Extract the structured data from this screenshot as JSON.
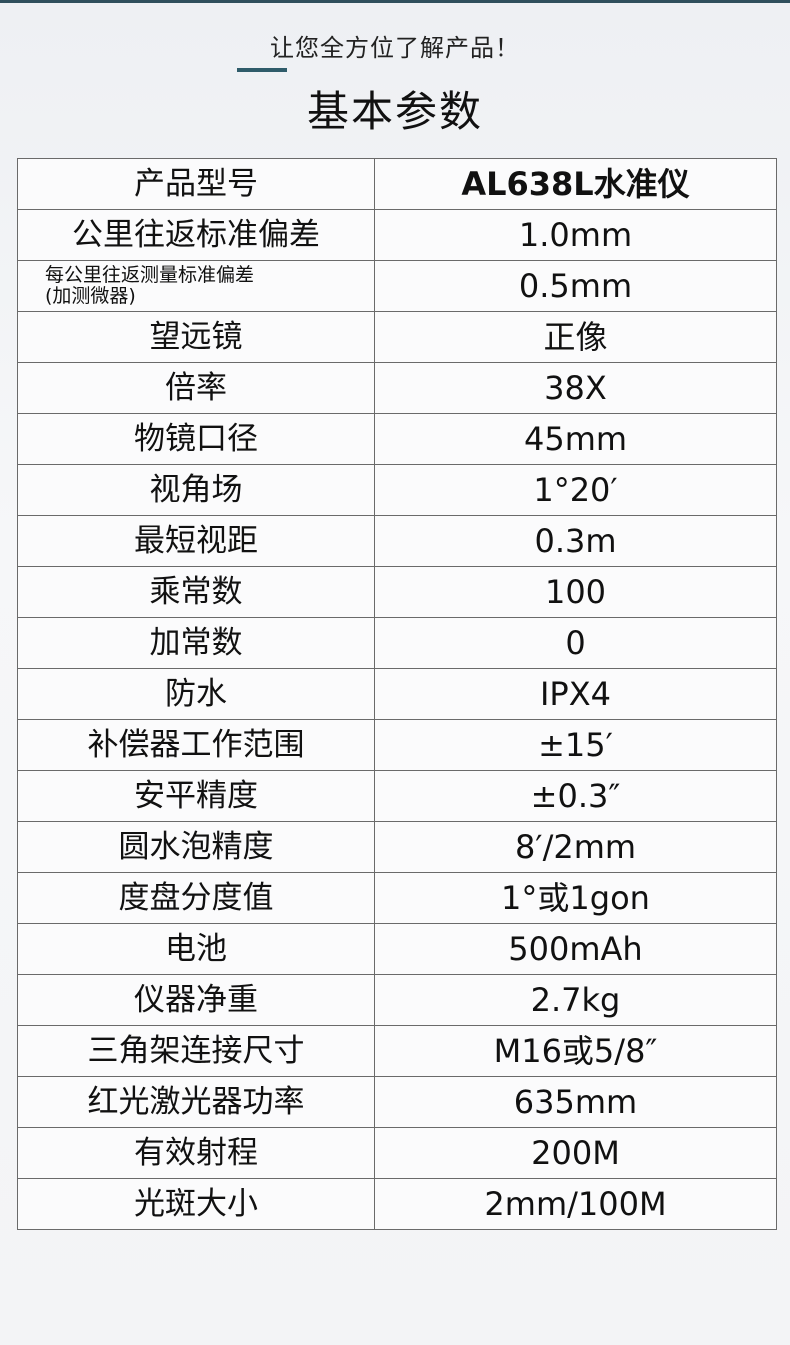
{
  "header": {
    "subtitle": "让您全方位了解产品！",
    "title": "基本参数"
  },
  "colors": {
    "accent": "#2f5c6a"
  },
  "specs": [
    {
      "label": "产品型号",
      "value": "AL638L水准仪"
    },
    {
      "label": "公里往返标准偏差",
      "value": "1.0mm"
    },
    {
      "label": "每公里往返测量标准偏差",
      "label2": "(加测微器)",
      "value": "0.5mm"
    },
    {
      "label": "望远镜",
      "value": "正像"
    },
    {
      "label": "倍率",
      "value": "38X"
    },
    {
      "label": "物镜口径",
      "value": "45mm"
    },
    {
      "label": "视角场",
      "value": "1°20′"
    },
    {
      "label": "最短视距",
      "value": "0.3m"
    },
    {
      "label": "乘常数",
      "value": "100"
    },
    {
      "label": "加常数",
      "value": "0"
    },
    {
      "label": "防水",
      "value": "IPX4"
    },
    {
      "label": "补偿器工作范围",
      "value": "±15′"
    },
    {
      "label": "安平精度",
      "value": "±0.3″"
    },
    {
      "label": "圆水泡精度",
      "value": "8′/2mm"
    },
    {
      "label": "度盘分度值",
      "value": "1°或1gon"
    },
    {
      "label": "电池",
      "value": "500mAh"
    },
    {
      "label": "仪器净重",
      "value": "2.7kg"
    },
    {
      "label": "三角架连接尺寸",
      "value": "M16或5/8″"
    },
    {
      "label": "红光激光器功率",
      "value": "635mm"
    },
    {
      "label": "有效射程",
      "value": "200M"
    },
    {
      "label": "光斑大小",
      "value": "2mm/100M"
    }
  ]
}
